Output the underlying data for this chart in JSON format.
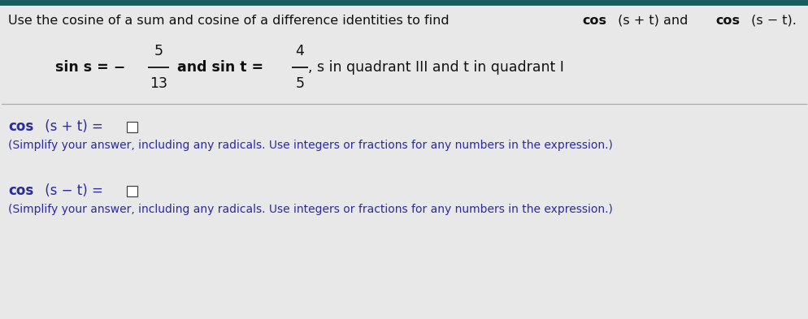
{
  "bg_color": "#e8e8e8",
  "top_bar_color": "#1a5f5f",
  "line_color": "#aaaaaa",
  "text_color": "#111111",
  "blue_text_color": "#2b2b9b",
  "simplify_text": "(Simplify your answer, including any radicals. Use integers or fractions for any numbers in the expression.)",
  "box_color": "#ffffff",
  "box_border_color": "#444444",
  "title_normal": "Use the cosine of a sum and cosine of a difference identities to find ",
  "title_bold1": "cos",
  "title_mid": " (s + t) and ",
  "title_bold2": "cos",
  "title_end": " (s − t).",
  "frac1_num": "5",
  "frac1_den": "13",
  "frac2_num": "4",
  "frac2_den": "5",
  "sin_prefix": "sin s = −",
  "sin_mid": " and sin t =",
  "sin_suffix": ", s in quadrant III and t in quadrant I",
  "cos_sum_bold": "cos",
  "cos_sum_rest": " (s + t) = ",
  "cos_diff_bold": "cos",
  "cos_diff_rest": " (s − t) = "
}
